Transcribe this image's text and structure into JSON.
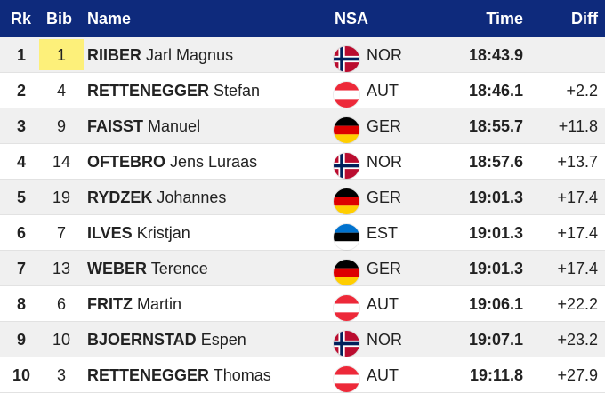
{
  "headers": {
    "rank": "Rk",
    "bib": "Bib",
    "name": "Name",
    "nsa": "NSA",
    "time": "Time",
    "diff": "Diff"
  },
  "colors": {
    "header_bg": "#0e2a7c",
    "header_text": "#ffffff",
    "bib_highlight": "#fdf07a",
    "row_alt": "#f0f0f0"
  },
  "rows": [
    {
      "rank": "1",
      "bib": "1",
      "last": "RIIBER",
      "first": "Jarl Magnus",
      "nsa": "NOR",
      "flag": "norway-flag-icon",
      "time": "18:43.9",
      "diff": ""
    },
    {
      "rank": "2",
      "bib": "4",
      "last": "RETTENEGGER",
      "first": "Stefan",
      "nsa": "AUT",
      "flag": "austria-flag-icon",
      "time": "18:46.1",
      "diff": "+2.2"
    },
    {
      "rank": "3",
      "bib": "9",
      "last": "FAISST",
      "first": "Manuel",
      "nsa": "GER",
      "flag": "germany-flag-icon",
      "time": "18:55.7",
      "diff": "+11.8"
    },
    {
      "rank": "4",
      "bib": "14",
      "last": "OFTEBRO",
      "first": "Jens Luraas",
      "nsa": "NOR",
      "flag": "norway-flag-icon",
      "time": "18:57.6",
      "diff": "+13.7"
    },
    {
      "rank": "5",
      "bib": "19",
      "last": "RYDZEK",
      "first": "Johannes",
      "nsa": "GER",
      "flag": "germany-flag-icon",
      "time": "19:01.3",
      "diff": "+17.4"
    },
    {
      "rank": "6",
      "bib": "7",
      "last": "ILVES",
      "first": "Kristjan",
      "nsa": "EST",
      "flag": "estonia-flag-icon",
      "time": "19:01.3",
      "diff": "+17.4"
    },
    {
      "rank": "7",
      "bib": "13",
      "last": "WEBER",
      "first": "Terence",
      "nsa": "GER",
      "flag": "germany-flag-icon",
      "time": "19:01.3",
      "diff": "+17.4"
    },
    {
      "rank": "8",
      "bib": "6",
      "last": "FRITZ",
      "first": "Martin",
      "nsa": "AUT",
      "flag": "austria-flag-icon",
      "time": "19:06.1",
      "diff": "+22.2"
    },
    {
      "rank": "9",
      "bib": "10",
      "last": "BJOERNSTAD",
      "first": "Espen",
      "nsa": "NOR",
      "flag": "norway-flag-icon",
      "time": "19:07.1",
      "diff": "+23.2"
    },
    {
      "rank": "10",
      "bib": "3",
      "last": "RETTENEGGER",
      "first": "Thomas",
      "nsa": "AUT",
      "flag": "austria-flag-icon",
      "time": "19:11.8",
      "diff": "+27.9"
    }
  ]
}
